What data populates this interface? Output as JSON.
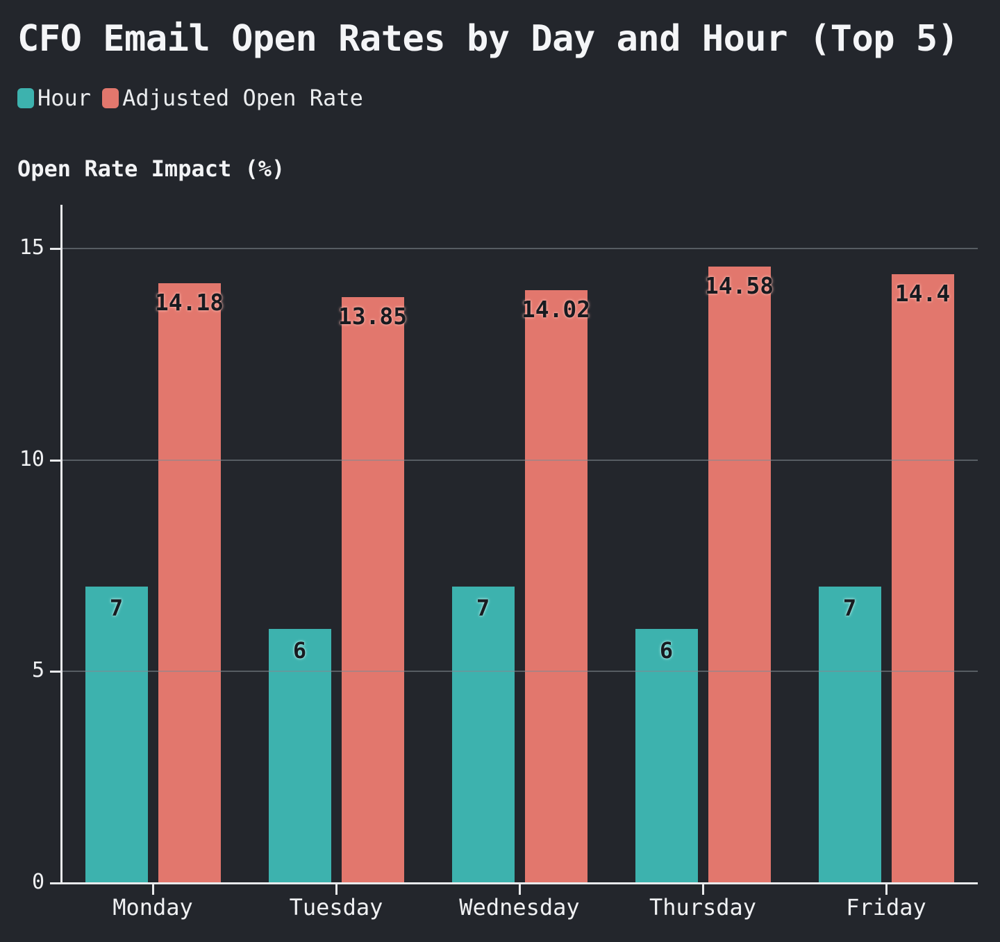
{
  "title": "CFO Email Open Rates by Day and Hour (Top 5)",
  "y_axis_title": "Open Rate Impact (%)",
  "legend": {
    "items": [
      {
        "label": "Hour",
        "color": "#3db2ae"
      },
      {
        "label": "Adjusted Open Rate",
        "color": "#e2776d"
      }
    ]
  },
  "colors": {
    "background": "#23262c",
    "hour_bar": "#3db2ae",
    "adjusted_open_rate_bar": "#e2776d",
    "axis": "#e9eaec",
    "text": "#f2f3f5",
    "value_label_text": "#181b20"
  },
  "chart_data": {
    "type": "bar",
    "title": "CFO Email Open Rates by Day and Hour (Top 5)",
    "ylabel": "Open Rate Impact (%)",
    "categories": [
      "Monday",
      "Tuesday",
      "Wednesday",
      "Thursday",
      "Friday"
    ],
    "series": [
      {
        "name": "Hour",
        "color": "#3db2ae",
        "values": [
          7,
          6,
          7,
          6,
          7
        ],
        "data_labels": [
          "7",
          "6",
          "7",
          "6",
          "7"
        ]
      },
      {
        "name": "Adjusted Open Rate",
        "color": "#e2776d",
        "values": [
          14.18,
          13.85,
          14.02,
          14.58,
          14.4
        ],
        "data_labels": [
          "14.18",
          "13.85",
          "14.02",
          "14.58",
          "14.4"
        ]
      }
    ],
    "yticks": [
      0,
      5,
      10,
      15
    ],
    "ylim": [
      0,
      16
    ],
    "grid": true,
    "legend_position": "top-left"
  }
}
